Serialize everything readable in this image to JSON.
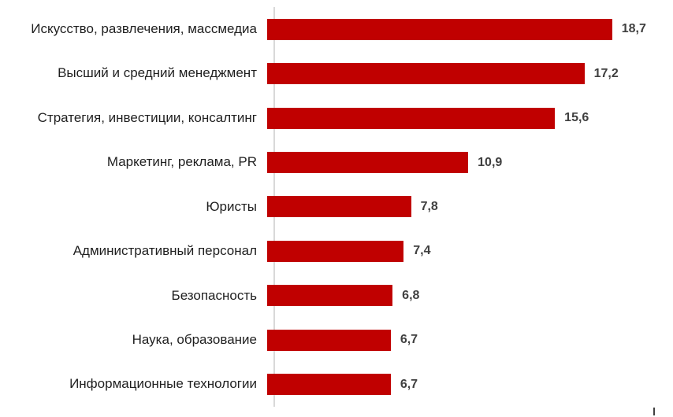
{
  "chart_data": {
    "type": "bar",
    "orientation": "horizontal",
    "title": "",
    "xlabel": "",
    "ylabel": "",
    "grid": false,
    "legend": false,
    "xlim": [
      0,
      22
    ],
    "categories": [
      "Искусство, развлечения, массмедиа",
      "Высший и средний менеджмент",
      "Стратегия, инвестиции, консалтинг",
      "Маркетинг, реклама, PR",
      "Юристы",
      "Административный персонал",
      "Безопасность",
      "Наука, образование",
      "Информационные технологии"
    ],
    "values": [
      18.7,
      17.2,
      15.6,
      10.9,
      7.8,
      7.4,
      6.8,
      6.7,
      6.7
    ],
    "value_labels": [
      "18,7",
      "17,2",
      "15,6",
      "10,9",
      "7,8",
      "7,4",
      "6,8",
      "6,7",
      "6,7"
    ],
    "colors": {
      "bar": "#c00000",
      "axis_line": "#d9d9d9",
      "value_label": "#404040",
      "category_label": "#1f1f1f"
    }
  }
}
